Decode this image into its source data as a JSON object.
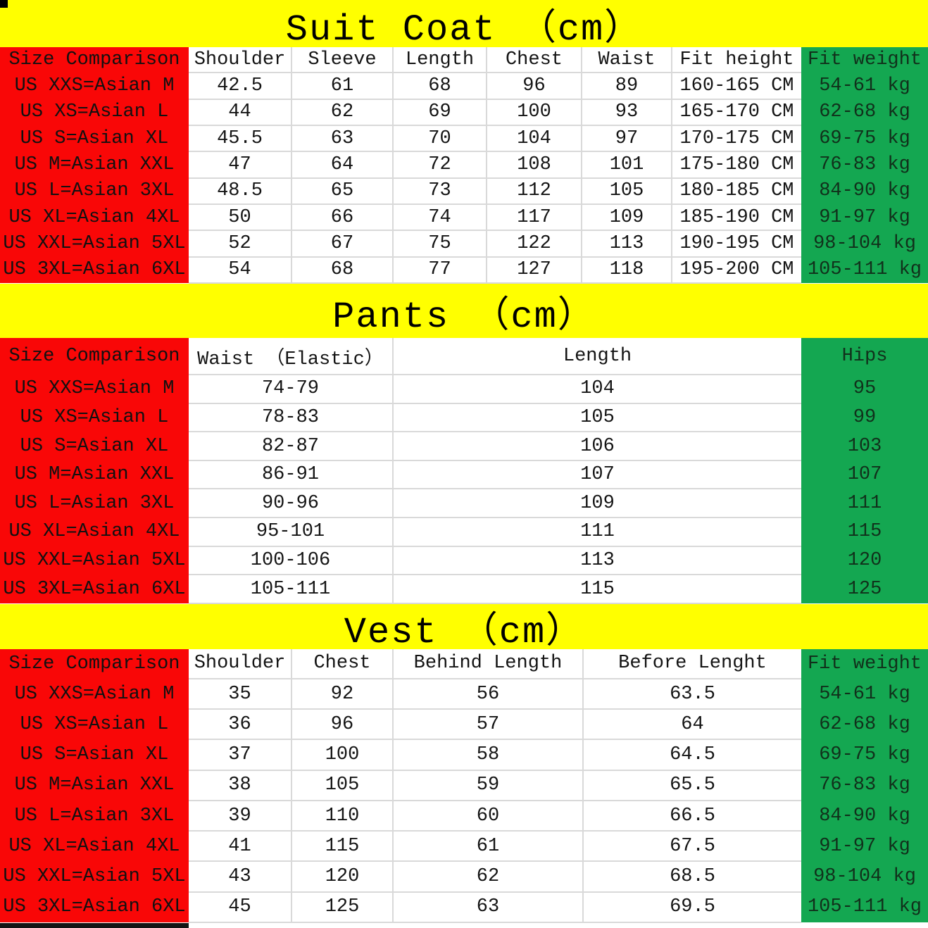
{
  "colors": {
    "banner_yellow": "#FFFF00",
    "size_column_red": "#F90707",
    "weight_column_green": "#14A751",
    "gridline_gray": "#D9D9D9",
    "text_black": "#141414"
  },
  "chart_data": [
    {
      "type": "table",
      "title": "Suit Coat （cm）",
      "columns": [
        "Size Comparison",
        "Shoulder",
        "Sleeve",
        "Length",
        "Chest",
        "Waist",
        "Fit height",
        "Fit weight"
      ],
      "rows": [
        [
          "US XXS=Asian M",
          "42.5",
          "61",
          "68",
          "96",
          "89",
          "160-165 CM",
          "54-61 kg"
        ],
        [
          "US XS=Asian L",
          "44",
          "62",
          "69",
          "100",
          "93",
          "165-170 CM",
          "62-68 kg"
        ],
        [
          "US S=Asian XL",
          "45.5",
          "63",
          "70",
          "104",
          "97",
          "170-175 CM",
          "69-75 kg"
        ],
        [
          "US M=Asian XXL",
          "47",
          "64",
          "72",
          "108",
          "101",
          "175-180 CM",
          "76-83 kg"
        ],
        [
          "US L=Asian 3XL",
          "48.5",
          "65",
          "73",
          "112",
          "105",
          "180-185 CM",
          "84-90 kg"
        ],
        [
          "US XL=Asian 4XL",
          "50",
          "66",
          "74",
          "117",
          "109",
          "185-190 CM",
          "91-97 kg"
        ],
        [
          "US XXL=Asian 5XL",
          "52",
          "67",
          "75",
          "122",
          "113",
          "190-195 CM",
          "98-104 kg"
        ],
        [
          "US 3XL=Asian 6XL",
          "54",
          "68",
          "77",
          "127",
          "118",
          "195-200 CM",
          "105-111 kg"
        ]
      ]
    },
    {
      "type": "table",
      "title": "Pants （cm）",
      "columns": [
        "Size Comparison",
        "Waist （Elastic）",
        "Length",
        "Hips"
      ],
      "rows": [
        [
          "US XXS=Asian M",
          "74-79",
          "104",
          "95"
        ],
        [
          "US XS=Asian L",
          "78-83",
          "105",
          "99"
        ],
        [
          "US S=Asian XL",
          "82-87",
          "106",
          "103"
        ],
        [
          "US M=Asian XXL",
          "86-91",
          "107",
          "107"
        ],
        [
          "US L=Asian 3XL",
          "90-96",
          "109",
          "111"
        ],
        [
          "US XL=Asian 4XL",
          "95-101",
          "111",
          "115"
        ],
        [
          "US XXL=Asian 5XL",
          "100-106",
          "113",
          "120"
        ],
        [
          "US 3XL=Asian 6XL",
          "105-111",
          "115",
          "125"
        ]
      ]
    },
    {
      "type": "table",
      "title": "Vest （cm）",
      "columns": [
        "Size Comparison",
        "Shoulder",
        "Chest",
        "Behind Length",
        "Before Lenght",
        "Fit weight"
      ],
      "rows": [
        [
          "US XXS=Asian M",
          "35",
          "92",
          "56",
          "63.5",
          "54-61 kg"
        ],
        [
          "US XS=Asian L",
          "36",
          "96",
          "57",
          "64",
          "62-68 kg"
        ],
        [
          "US S=Asian XL",
          "37",
          "100",
          "58",
          "64.5",
          "69-75 kg"
        ],
        [
          "US M=Asian XXL",
          "38",
          "105",
          "59",
          "65.5",
          "76-83 kg"
        ],
        [
          "US L=Asian 3XL",
          "39",
          "110",
          "60",
          "66.5",
          "84-90 kg"
        ],
        [
          "US XL=Asian 4XL",
          "41",
          "115",
          "61",
          "67.5",
          "91-97 kg"
        ],
        [
          "US XXL=Asian 5XL",
          "43",
          "120",
          "62",
          "68.5",
          "98-104 kg"
        ],
        [
          "US 3XL=Asian 6XL",
          "45",
          "125",
          "63",
          "69.5",
          "105-111 kg"
        ]
      ]
    }
  ]
}
